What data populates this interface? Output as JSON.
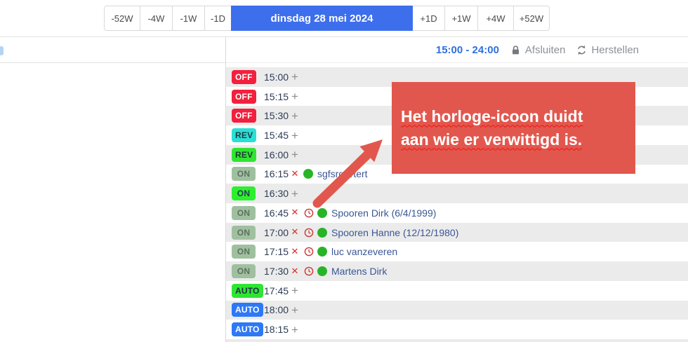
{
  "toolbar": {
    "nav_left": [
      "-52W",
      "-4W",
      "-1W",
      "-1D"
    ],
    "date_label": "dinsdag 28 mei 2024",
    "nav_right": [
      "+1D",
      "+1W",
      "+4W",
      "+52W"
    ]
  },
  "schedule_header": {
    "time_range": "15:00 - 24:00",
    "close_label": "Afsluiten",
    "restore_label": "Herstellen"
  },
  "annotation": {
    "line1": "Het horloge-icoon duidt",
    "line2": "aan wie er verwittigd is."
  },
  "rows": [
    {
      "status": "OFF",
      "variant": "off",
      "time": "15:00",
      "action": "add"
    },
    {
      "status": "OFF",
      "variant": "off",
      "time": "15:15",
      "action": "add"
    },
    {
      "status": "OFF",
      "variant": "off",
      "time": "15:30",
      "action": "add"
    },
    {
      "status": "REV",
      "variant": "rev_cyan",
      "time": "15:45",
      "action": "add"
    },
    {
      "status": "REV",
      "variant": "rev_green",
      "time": "16:00",
      "action": "add"
    },
    {
      "status": "ON",
      "variant": "on_muted",
      "time": "16:15",
      "action": "remove",
      "notified": false,
      "person": "sgfsrgrtrtert"
    },
    {
      "status": "ON",
      "variant": "on_green",
      "time": "16:30",
      "action": "add"
    },
    {
      "status": "ON",
      "variant": "on_muted",
      "time": "16:45",
      "action": "remove",
      "notified": true,
      "person": "Spooren Dirk (6/4/1999)"
    },
    {
      "status": "ON",
      "variant": "on_muted",
      "time": "17:00",
      "action": "remove",
      "notified": true,
      "person": "Spooren Hanne (12/12/1980)"
    },
    {
      "status": "ON",
      "variant": "on_muted",
      "time": "17:15",
      "action": "remove",
      "notified": true,
      "person": "luc vanzeveren"
    },
    {
      "status": "ON",
      "variant": "on_muted",
      "time": "17:30",
      "action": "remove",
      "notified": true,
      "person": "Martens Dirk"
    },
    {
      "status": "AUTO",
      "variant": "auto_green",
      "time": "17:45",
      "action": "add"
    },
    {
      "status": "AUTO",
      "variant": "auto_blue",
      "time": "18:00",
      "action": "add"
    },
    {
      "status": "AUTO",
      "variant": "auto_blue",
      "time": "18:15",
      "action": "add"
    }
  ],
  "icons": {
    "add": "+",
    "remove": "✕",
    "lock": "lock-icon",
    "refresh": "refresh-icon",
    "clock": "clock-icon",
    "presence": "green-dot-icon"
  },
  "badge_colors": {
    "off": {
      "bg": "#f2203d",
      "fg": "#ffffff"
    },
    "rev_cyan": {
      "bg": "#2bdfd4",
      "fg": "#1d3a4a"
    },
    "rev_green": {
      "bg": "#30e531",
      "fg": "#1d3a33"
    },
    "on_muted": {
      "bg": "#9fc09f",
      "fg": "#5e6f60"
    },
    "on_green": {
      "bg": "#2cf02c",
      "fg": "#263c52"
    },
    "auto_green": {
      "bg": "#30e531",
      "fg": "#1c3247"
    },
    "auto_blue": {
      "bg": "#2d78f6",
      "fg": "#ffffff"
    }
  },
  "colors": {
    "accent_blue": "#3d6eec",
    "header_time_color": "#2e6fe2",
    "annotation_red": "#e2574d",
    "row_alt_bg": "#ebebeb",
    "name_link_color": "#3a5795",
    "time_text_color": "#2c3c55",
    "remove_red": "#d6312b",
    "notified_clock_red": "#c83a36",
    "presence_green": "#28b428"
  }
}
